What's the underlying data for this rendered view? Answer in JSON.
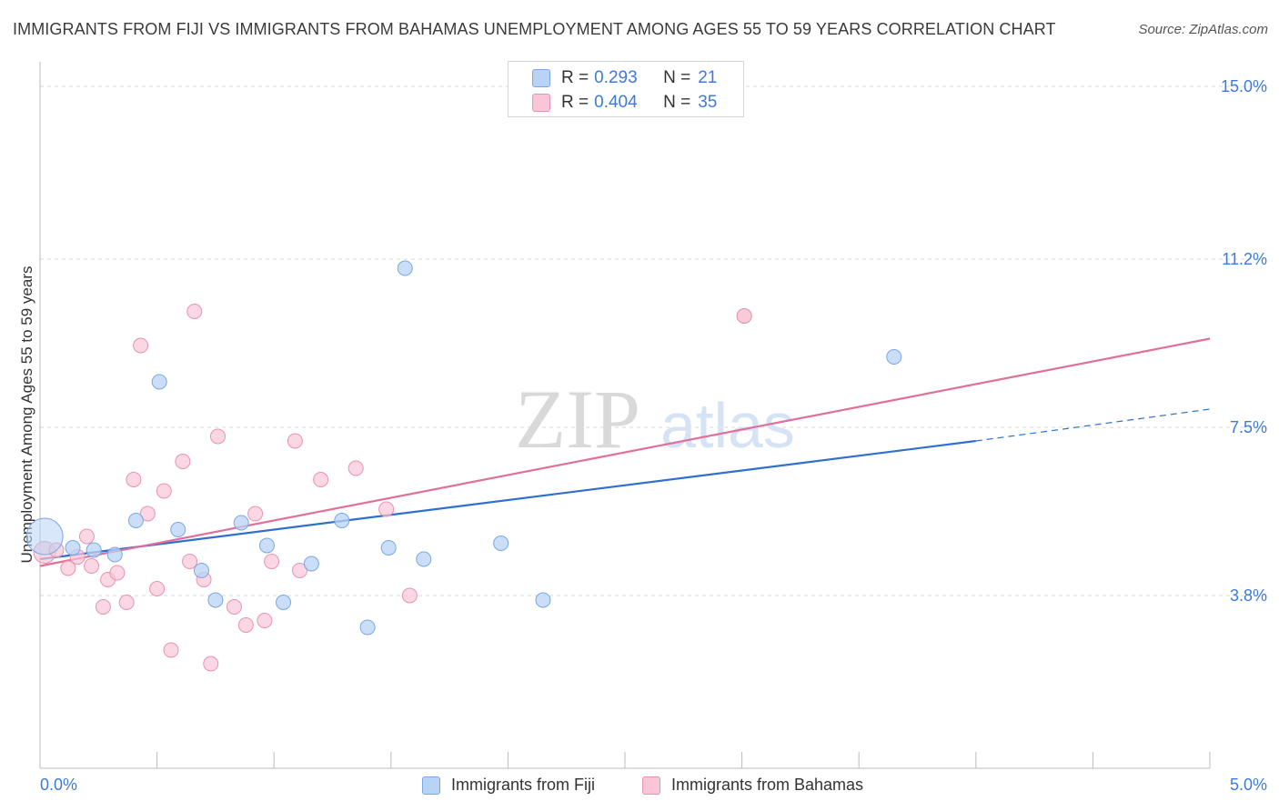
{
  "header": {
    "title": "IMMIGRANTS FROM FIJI VS IMMIGRANTS FROM BAHAMAS UNEMPLOYMENT AMONG AGES 55 TO 59 YEARS CORRELATION CHART",
    "source": "Source: ZipAtlas.com"
  },
  "watermark": {
    "zip": "ZIP",
    "atlas": "atlas"
  },
  "colors": {
    "fiji_fill": "#b8d3f5",
    "fiji_stroke": "#7aa8e3",
    "fiji_line": "#2f6fd0",
    "bahamas_fill": "#f8c6d6",
    "bahamas_stroke": "#e993b0",
    "bahamas_line": "#e0709a",
    "tick_label": "#3e7bd6",
    "grid": "#d9d9d9"
  },
  "legend_top": {
    "rows": [
      {
        "r_label": "R = ",
        "r_value": "0.293",
        "n_label": "N = ",
        "n_value": "21"
      },
      {
        "r_label": "R = ",
        "r_value": "0.404",
        "n_label": "N = ",
        "n_value": "35"
      }
    ]
  },
  "legend_bottom": {
    "fiji": "Immigrants from Fiji",
    "bahamas": "Immigrants from Bahamas"
  },
  "chart_data": {
    "type": "scatter",
    "title": "IMMIGRANTS FROM FIJI VS IMMIGRANTS FROM BAHAMAS UNEMPLOYMENT AMONG AGES 55 TO 59 YEARS CORRELATION CHART",
    "xlabel": "",
    "ylabel": "Unemployment Among Ages 55 to 59 years",
    "xlim": [
      0,
      5.0
    ],
    "ylim": [
      0,
      15.4
    ],
    "x_tick_labels": [
      "0.0%",
      "5.0%"
    ],
    "y_ticks": [
      3.8,
      7.5,
      11.2,
      15.0
    ],
    "y_tick_labels": [
      "3.8%",
      "7.5%",
      "11.2%",
      "15.0%"
    ],
    "grid": true,
    "legend_position": "top-center",
    "series": [
      {
        "name": "Immigrants from Fiji",
        "r": 0.293,
        "n": 21,
        "points": [
          [
            0.02,
            5.1
          ],
          [
            0.14,
            4.85
          ],
          [
            0.23,
            4.8
          ],
          [
            0.32,
            4.7
          ],
          [
            0.51,
            8.5
          ],
          [
            0.41,
            5.45
          ],
          [
            0.59,
            5.25
          ],
          [
            0.69,
            4.35
          ],
          [
            0.75,
            3.7
          ],
          [
            0.86,
            5.4
          ],
          [
            0.97,
            4.9
          ],
          [
            1.04,
            3.65
          ],
          [
            1.16,
            4.5
          ],
          [
            1.29,
            5.45
          ],
          [
            1.4,
            3.1
          ],
          [
            1.49,
            4.85
          ],
          [
            1.56,
            11.0
          ],
          [
            1.64,
            4.6
          ],
          [
            1.97,
            4.95
          ],
          [
            2.15,
            3.7
          ],
          [
            3.65,
            9.05
          ]
        ],
        "trend": {
          "x_start": 0.0,
          "y_start": 4.6,
          "x_end": 4.0,
          "y_end": 7.2,
          "dashed_to_x": 5.0,
          "dashed_to_y": 7.9
        }
      },
      {
        "name": "Immigrants from Bahamas",
        "r": 0.404,
        "n": 35,
        "points": [
          [
            0.02,
            4.75
          ],
          [
            0.07,
            4.8
          ],
          [
            0.12,
            4.4
          ],
          [
            0.16,
            4.65
          ],
          [
            0.2,
            5.1
          ],
          [
            0.22,
            4.45
          ],
          [
            0.27,
            3.55
          ],
          [
            0.29,
            4.15
          ],
          [
            0.33,
            4.3
          ],
          [
            0.37,
            3.65
          ],
          [
            0.4,
            6.35
          ],
          [
            0.43,
            9.3
          ],
          [
            0.46,
            5.6
          ],
          [
            0.5,
            3.95
          ],
          [
            0.53,
            6.1
          ],
          [
            0.56,
            2.6
          ],
          [
            0.61,
            6.75
          ],
          [
            0.64,
            4.55
          ],
          [
            0.66,
            10.05
          ],
          [
            0.7,
            4.15
          ],
          [
            0.73,
            2.3
          ],
          [
            0.76,
            7.3
          ],
          [
            0.83,
            3.55
          ],
          [
            0.88,
            3.15
          ],
          [
            0.92,
            5.6
          ],
          [
            0.96,
            3.25
          ],
          [
            0.99,
            4.55
          ],
          [
            1.09,
            7.2
          ],
          [
            1.11,
            4.35
          ],
          [
            1.2,
            6.35
          ],
          [
            1.35,
            6.6
          ],
          [
            1.48,
            5.7
          ],
          [
            1.58,
            3.8
          ],
          [
            3.01,
            9.95
          ],
          [
            3.01,
            9.95
          ]
        ],
        "trend": {
          "x_start": 0.0,
          "y_start": 4.45,
          "x_end": 5.0,
          "y_end": 9.45
        }
      }
    ]
  }
}
